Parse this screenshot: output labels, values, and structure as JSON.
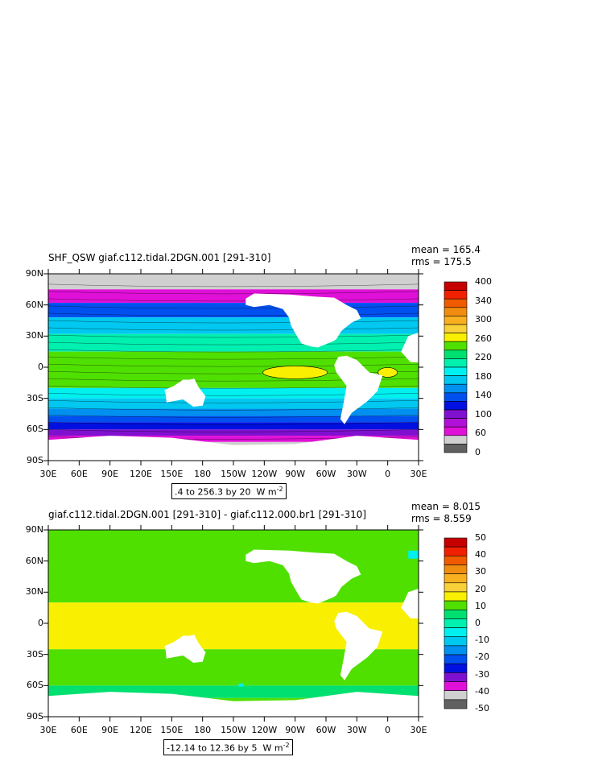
{
  "chart_data": [
    {
      "type": "heatmap",
      "title": "SHF_QSW giaf.c112.tidal.2DGN.001 [291-310]",
      "stats": {
        "mean": "mean = 165.4",
        "rms": "rms = 175.5"
      },
      "range_label": ".4 to 256.3 by 20",
      "units_label": "W m",
      "units_exp": "-2",
      "y_ticks": [
        "90N",
        "60N",
        "30N",
        "0",
        "30S",
        "60S",
        "90S"
      ],
      "x_ticks": [
        "30E",
        "60E",
        "90E",
        "120E",
        "150E",
        "180",
        "150W",
        "120W",
        "90W",
        "60W",
        "30W",
        "0",
        "30E"
      ],
      "colorbar": {
        "labels": [
          "400",
          "340",
          "300",
          "260",
          "220",
          "180",
          "140",
          "100",
          "60",
          "0"
        ],
        "colors": [
          "#c60000",
          "#f02000",
          "#f05a00",
          "#f08c10",
          "#f8b020",
          "#f8d038",
          "#f8f000",
          "#50e000",
          "#00e070",
          "#00f0b0",
          "#00f0f0",
          "#00c8f0",
          "#0090f0",
          "#0050f0",
          "#0010e0",
          "#8010d0",
          "#b010d8",
          "#e010d8",
          "#d0d0d0",
          "#606060"
        ]
      },
      "zones": [
        {
          "lat": [
            90,
            75
          ],
          "value": "#d0d0d0"
        },
        {
          "lat": [
            75,
            62
          ],
          "value": "#e010d8"
        },
        {
          "lat": [
            62,
            48
          ],
          "value": "#0050f0"
        },
        {
          "lat": [
            48,
            32
          ],
          "value": "#00c8f0"
        },
        {
          "lat": [
            32,
            15
          ],
          "value": "#00f0b0"
        },
        {
          "lat": [
            15,
            -20
          ],
          "value": "#50e000"
        },
        {
          "lat": [
            -20,
            -30
          ],
          "value": "#00f0f0"
        },
        {
          "lat": [
            -30,
            -40
          ],
          "value": "#00c8f0"
        },
        {
          "lat": [
            -40,
            -47
          ],
          "value": "#0090f0"
        },
        {
          "lat": [
            -47,
            -53
          ],
          "value": "#0050f0"
        },
        {
          "lat": [
            -53,
            -60
          ],
          "value": "#0010e0"
        },
        {
          "lat": [
            -60,
            -66
          ],
          "value": "#8010d0"
        },
        {
          "lat": [
            -66,
            -72
          ],
          "value": "#e010d8"
        },
        {
          "lat": [
            -72,
            -90
          ],
          "value": "#d0d0d0"
        }
      ]
    },
    {
      "type": "heatmap",
      "title": "giaf.c112.tidal.2DGN.001 [291-310] - giaf.c112.000.br1 [291-310]",
      "stats": {
        "mean": "mean = 8.015",
        "rms": "rms = 8.559"
      },
      "range_label": "-12.14 to 12.36 by 5",
      "units_label": "W m",
      "units_exp": "-2",
      "y_ticks": [
        "90N",
        "60N",
        "30N",
        "0",
        "30S",
        "60S",
        "90S"
      ],
      "x_ticks": [
        "30E",
        "60E",
        "90E",
        "120E",
        "150E",
        "180",
        "150W",
        "120W",
        "90W",
        "60W",
        "30W",
        "0",
        "30E"
      ],
      "colorbar": {
        "labels": [
          "50",
          "40",
          "30",
          "20",
          "10",
          "0",
          "-10",
          "-20",
          "-30",
          "-40",
          "-50"
        ],
        "colors": [
          "#c60000",
          "#f02000",
          "#f05a00",
          "#f08c10",
          "#f8b020",
          "#f8d038",
          "#f8f000",
          "#50e000",
          "#00e070",
          "#00f0b0",
          "#00f0f0",
          "#00c8f0",
          "#0090f0",
          "#0050f0",
          "#0010e0",
          "#8010d0",
          "#e010d8",
          "#d0d0d0",
          "#606060"
        ]
      },
      "zones": [
        {
          "lat": [
            90,
            20
          ],
          "value": "#50e000"
        },
        {
          "lat": [
            20,
            -25
          ],
          "value": "#f8f000"
        },
        {
          "lat": [
            -25,
            -60
          ],
          "value": "#50e000"
        },
        {
          "lat": [
            -60,
            -72
          ],
          "value": "#00e070"
        },
        {
          "lat": [
            -72,
            -90
          ],
          "value": "#50e000"
        }
      ]
    }
  ]
}
